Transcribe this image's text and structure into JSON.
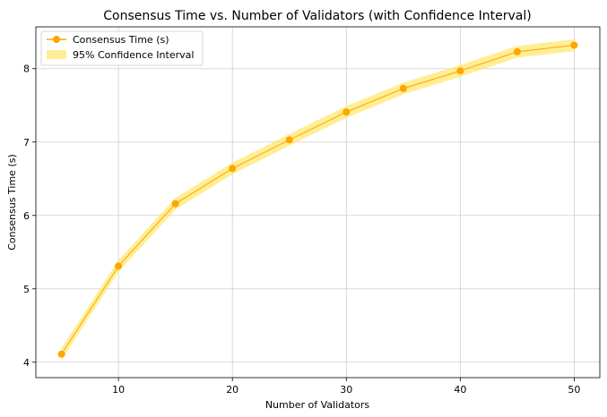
{
  "chart_data": {
    "type": "line",
    "title": "Consensus Time vs. Number of Validators (with Confidence Interval)",
    "xlabel": "Number of Validators",
    "ylabel": "Consensus Time (s)",
    "x": [
      5,
      10,
      15,
      20,
      25,
      30,
      35,
      40,
      45,
      50
    ],
    "series": [
      {
        "name": "Consensus Time (s)",
        "values": [
          4.11,
          5.31,
          6.16,
          6.64,
          7.03,
          7.41,
          7.73,
          7.97,
          8.23,
          8.32
        ],
        "lower": [
          4.03,
          5.23,
          6.08,
          6.56,
          6.95,
          7.33,
          7.65,
          7.89,
          8.15,
          8.24
        ],
        "upper": [
          4.19,
          5.39,
          6.24,
          6.72,
          7.11,
          7.49,
          7.81,
          8.05,
          8.31,
          8.4
        ],
        "color": "#FFA500",
        "band_color": "#FFE55C",
        "band_label": "95% Confidence Interval"
      }
    ],
    "xlim": [
      2.75,
      52.25
    ],
    "ylim": [
      3.79,
      8.57
    ],
    "xticks": [
      10,
      20,
      30,
      40,
      50
    ],
    "yticks": [
      4,
      5,
      6,
      7,
      8
    ],
    "grid": true,
    "legend_position": "top-left"
  }
}
